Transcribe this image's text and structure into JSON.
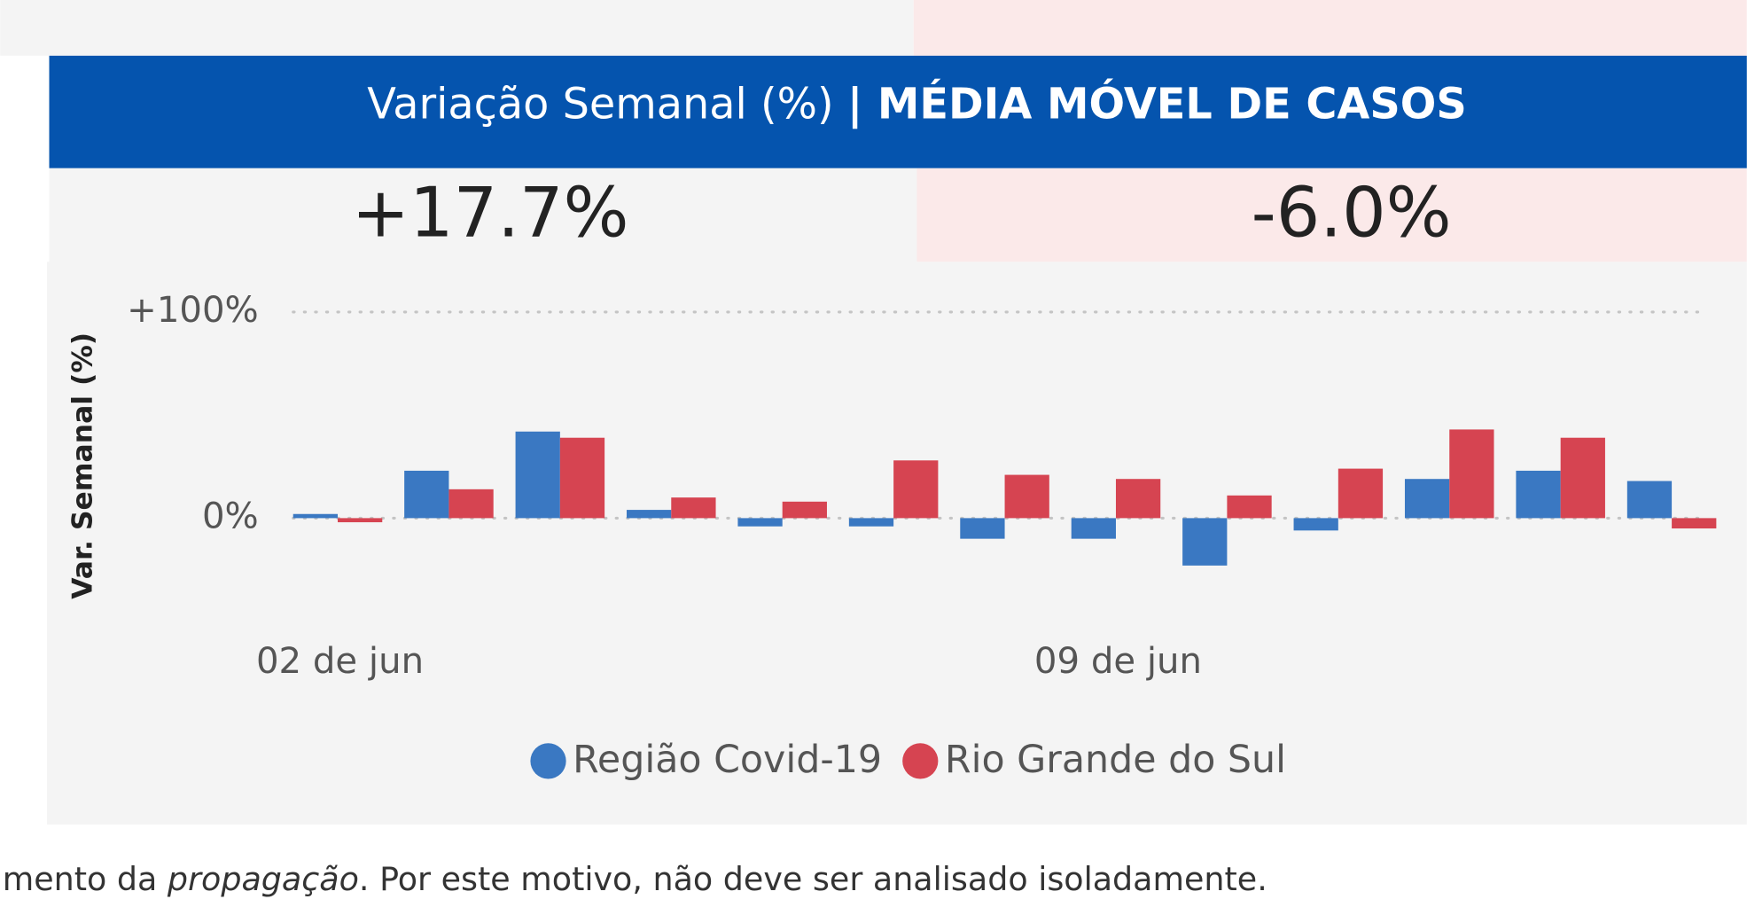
{
  "header": {
    "title": "Variação Semanal (%)",
    "title_bold": "| MÉDIA MÓVEL DE CASOS"
  },
  "kpis": [
    "+17.7%",
    "-6.0%"
  ],
  "chart_data": {
    "type": "bar",
    "y_label": "Var. Semanal (%)",
    "categories": [
      "02 de jun",
      null,
      null,
      null,
      null,
      null,
      null,
      "09 de jun",
      null,
      null,
      null,
      null,
      null
    ],
    "series": [
      {
        "name": "Região Covid-19",
        "color": "#3a78c2",
        "values": [
          2,
          23,
          42,
          4,
          -4,
          -4,
          -10,
          -10,
          -23,
          -6,
          19,
          23,
          18
        ]
      },
      {
        "name": "Rio Grande do Sul",
        "color": "#d64451",
        "values": [
          -2,
          14,
          39,
          10,
          8,
          28,
          21,
          19,
          11,
          24,
          43,
          39,
          -5
        ]
      }
    ],
    "ylim": [
      -40,
      100
    ],
    "yticks": [
      {
        "value": 0,
        "label": "0%"
      },
      {
        "value": 100,
        "label": "+100%"
      }
    ],
    "grid": true
  },
  "footnote": {
    "before": "mento da ",
    "italic": "propagação",
    "after": ". Por este motivo, não deve ser analisado isoladamente."
  }
}
